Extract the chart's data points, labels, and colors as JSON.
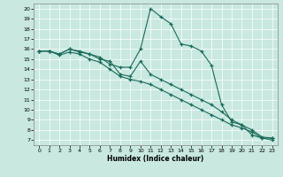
{
  "title": "",
  "xlabel": "Humidex (Indice chaleur)",
  "ylabel": "",
  "bg_color": "#c8e8e0",
  "grid_color": "#ffffff",
  "line_color": "#1a6b5a",
  "xlim": [
    -0.5,
    23.5
  ],
  "ylim": [
    6.5,
    20.5
  ],
  "yticks": [
    7,
    8,
    9,
    10,
    11,
    12,
    13,
    14,
    15,
    16,
    17,
    18,
    19,
    20
  ],
  "xticks": [
    0,
    1,
    2,
    3,
    4,
    5,
    6,
    7,
    8,
    9,
    10,
    11,
    12,
    13,
    14,
    15,
    16,
    17,
    18,
    19,
    20,
    21,
    22,
    23
  ],
  "series": [
    {
      "x": [
        0,
        1,
        2,
        3,
        4,
        5,
        6,
        7,
        8,
        9,
        10,
        11,
        12,
        13,
        14,
        15,
        16,
        17,
        18,
        19,
        20,
        21,
        22,
        23
      ],
      "y": [
        15.8,
        15.8,
        15.5,
        16.0,
        15.8,
        15.5,
        15.2,
        14.5,
        14.2,
        14.2,
        16.0,
        20.0,
        19.2,
        18.5,
        16.5,
        16.3,
        15.8,
        14.4,
        10.5,
        8.8,
        8.5,
        7.5,
        7.2,
        7.2
      ]
    },
    {
      "x": [
        0,
        1,
        2,
        3,
        4,
        5,
        6,
        7,
        8,
        9,
        10,
        11,
        12,
        13,
        14,
        15,
        16,
        17,
        18,
        19,
        20,
        21,
        22,
        23
      ],
      "y": [
        15.8,
        15.8,
        15.5,
        16.0,
        15.7,
        15.5,
        15.0,
        14.8,
        13.5,
        13.3,
        14.8,
        13.5,
        13.0,
        12.5,
        12.0,
        11.5,
        11.0,
        10.5,
        9.8,
        9.0,
        8.5,
        8.0,
        7.3,
        7.2
      ]
    },
    {
      "x": [
        0,
        1,
        2,
        3,
        4,
        5,
        6,
        7,
        8,
        9,
        10,
        11,
        12,
        13,
        14,
        15,
        16,
        17,
        18,
        19,
        20,
        21,
        22,
        23
      ],
      "y": [
        15.8,
        15.8,
        15.4,
        15.7,
        15.5,
        15.0,
        14.7,
        14.0,
        13.3,
        13.0,
        12.8,
        12.5,
        12.0,
        11.5,
        11.0,
        10.5,
        10.0,
        9.5,
        9.0,
        8.5,
        8.2,
        7.8,
        7.2,
        7.0
      ]
    }
  ]
}
